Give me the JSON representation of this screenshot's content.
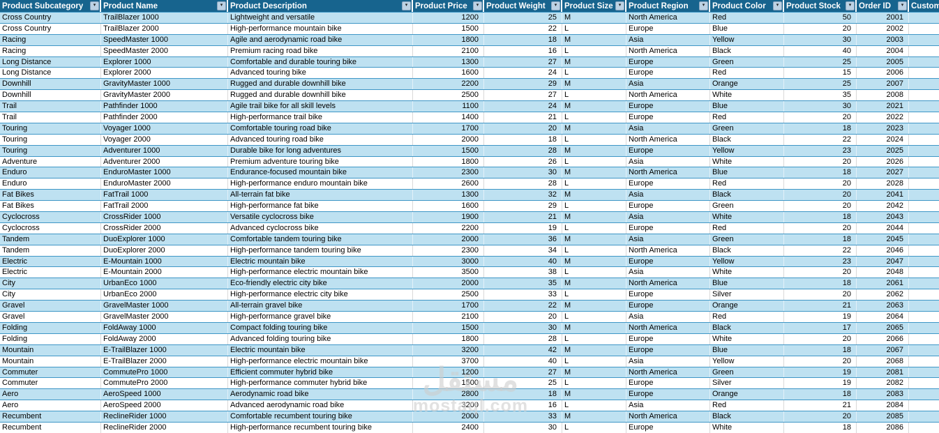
{
  "table": {
    "columns": [
      {
        "label": "Product Subcategory",
        "align": "left",
        "filter": true
      },
      {
        "label": "Product Name",
        "align": "left",
        "filter": true
      },
      {
        "label": "Product Description",
        "align": "left",
        "filter": true
      },
      {
        "label": "Product Price",
        "align": "right",
        "filter": true
      },
      {
        "label": "Product Weight",
        "align": "right",
        "filter": true
      },
      {
        "label": "Product Size",
        "align": "left",
        "filter": true
      },
      {
        "label": "Product Region",
        "align": "left",
        "filter": true
      },
      {
        "label": "Product Color",
        "align": "left",
        "filter": true
      },
      {
        "label": "Product Stock",
        "align": "right",
        "filter": true
      },
      {
        "label": "Order ID",
        "align": "right",
        "filter": true
      },
      {
        "label": "Custom",
        "align": "left",
        "filter": false
      }
    ],
    "rows": [
      [
        "Cross Country",
        "TrailBlazer 1000",
        "Lightweight and versatile",
        "1200",
        "25",
        "M",
        "North America",
        "Red",
        "50",
        "2001",
        ""
      ],
      [
        "Cross Country",
        "TrailBlazer 2000",
        "High-performance mountain bike",
        "1500",
        "22",
        "L",
        "Europe",
        "Blue",
        "20",
        "2002",
        ""
      ],
      [
        "Racing",
        "SpeedMaster 1000",
        "Agile and aerodynamic road bike",
        "1800",
        "18",
        "M",
        "Asia",
        "Yellow",
        "30",
        "2003",
        ""
      ],
      [
        "Racing",
        "SpeedMaster 2000",
        "Premium racing road bike",
        "2100",
        "16",
        "L",
        "North America",
        "Black",
        "40",
        "2004",
        ""
      ],
      [
        "Long Distance",
        "Explorer 1000",
        "Comfortable and durable touring bike",
        "1300",
        "27",
        "M",
        "Europe",
        "Green",
        "25",
        "2005",
        ""
      ],
      [
        "Long Distance",
        "Explorer 2000",
        "Advanced touring bike",
        "1600",
        "24",
        "L",
        "Europe",
        "Red",
        "15",
        "2006",
        ""
      ],
      [
        "Downhill",
        "GravityMaster 1000",
        "Rugged and durable downhill bike",
        "2200",
        "29",
        "M",
        "Asia",
        "Orange",
        "25",
        "2007",
        ""
      ],
      [
        "Downhill",
        "GravityMaster 2000",
        "Rugged and durable downhill bike",
        "2500",
        "27",
        "L",
        "North America",
        "White",
        "35",
        "2008",
        ""
      ],
      [
        "Trail",
        "Pathfinder 1000",
        "Agile trail bike for all skill levels",
        "1100",
        "24",
        "M",
        "Europe",
        "Blue",
        "30",
        "2021",
        ""
      ],
      [
        "Trail",
        "Pathfinder 2000",
        "High-performance trail bike",
        "1400",
        "21",
        "L",
        "Europe",
        "Red",
        "20",
        "2022",
        ""
      ],
      [
        "Touring",
        "Voyager 1000",
        "Comfortable touring road bike",
        "1700",
        "20",
        "M",
        "Asia",
        "Green",
        "18",
        "2023",
        ""
      ],
      [
        "Touring",
        "Voyager 2000",
        "Advanced touring road bike",
        "2000",
        "18",
        "L",
        "North America",
        "Black",
        "22",
        "2024",
        ""
      ],
      [
        "Touring",
        "Adventurer 1000",
        "Durable bike for long adventures",
        "1500",
        "28",
        "M",
        "Europe",
        "Yellow",
        "23",
        "2025",
        ""
      ],
      [
        "Adventure",
        "Adventurer 2000",
        "Premium adventure touring bike",
        "1800",
        "26",
        "L",
        "Asia",
        "White",
        "20",
        "2026",
        ""
      ],
      [
        "Enduro",
        "EnduroMaster 1000",
        "Endurance-focused mountain bike",
        "2300",
        "30",
        "M",
        "North America",
        "Blue",
        "18",
        "2027",
        ""
      ],
      [
        "Enduro",
        "EnduroMaster 2000",
        "High-performance enduro mountain bike",
        "2600",
        "28",
        "L",
        "Europe",
        "Red",
        "20",
        "2028",
        ""
      ],
      [
        "Fat Bikes",
        "FatTrail 1000",
        "All-terrain fat bike",
        "1300",
        "32",
        "M",
        "Asia",
        "Black",
        "20",
        "2041",
        ""
      ],
      [
        "Fat Bikes",
        "FatTrail 2000",
        "High-performance fat bike",
        "1600",
        "29",
        "L",
        "Europe",
        "Green",
        "20",
        "2042",
        ""
      ],
      [
        "Cyclocross",
        "CrossRider 1000",
        "Versatile cyclocross bike",
        "1900",
        "21",
        "M",
        "Asia",
        "White",
        "18",
        "2043",
        ""
      ],
      [
        "Cyclocross",
        "CrossRider 2000",
        "Advanced cyclocross bike",
        "2200",
        "19",
        "L",
        "Europe",
        "Red",
        "20",
        "2044",
        ""
      ],
      [
        "Tandem",
        "DuoExplorer 1000",
        "Comfortable tandem touring bike",
        "2000",
        "36",
        "M",
        "Asia",
        "Green",
        "18",
        "2045",
        ""
      ],
      [
        "Tandem",
        "DuoExplorer 2000",
        "High-performance tandem touring bike",
        "2300",
        "34",
        "L",
        "North America",
        "Black",
        "22",
        "2046",
        ""
      ],
      [
        "Electric",
        "E-Mountain 1000",
        "Electric mountain bike",
        "3000",
        "40",
        "M",
        "Europe",
        "Yellow",
        "23",
        "2047",
        ""
      ],
      [
        "Electric",
        "E-Mountain 2000",
        "High-performance electric mountain bike",
        "3500",
        "38",
        "L",
        "Asia",
        "White",
        "20",
        "2048",
        ""
      ],
      [
        "City",
        "UrbanEco 1000",
        "Eco-friendly electric city bike",
        "2000",
        "35",
        "M",
        "North America",
        "Blue",
        "18",
        "2061",
        ""
      ],
      [
        "City",
        "UrbanEco 2000",
        "High-performance electric city bike",
        "2500",
        "33",
        "L",
        "Europe",
        "Silver",
        "20",
        "2062",
        ""
      ],
      [
        "Gravel",
        "GravelMaster 1000",
        "All-terrain gravel bike",
        "1700",
        "22",
        "M",
        "Europe",
        "Orange",
        "21",
        "2063",
        ""
      ],
      [
        "Gravel",
        "GravelMaster 2000",
        "High-performance gravel bike",
        "2100",
        "20",
        "L",
        "Asia",
        "Red",
        "19",
        "2064",
        ""
      ],
      [
        "Folding",
        "FoldAway 1000",
        "Compact folding touring bike",
        "1500",
        "30",
        "M",
        "North America",
        "Black",
        "17",
        "2065",
        ""
      ],
      [
        "Folding",
        "FoldAway 2000",
        "Advanced folding touring bike",
        "1800",
        "28",
        "L",
        "Europe",
        "White",
        "20",
        "2066",
        ""
      ],
      [
        "Mountain",
        "E-TrailBlazer 1000",
        "Electric mountain bike",
        "3200",
        "42",
        "M",
        "Europe",
        "Blue",
        "18",
        "2067",
        ""
      ],
      [
        "Mountain",
        "E-TrailBlazer 2000",
        "High-performance electric mountain bike",
        "3700",
        "40",
        "L",
        "Asia",
        "Yellow",
        "20",
        "2068",
        ""
      ],
      [
        "Commuter",
        "CommutePro 1000",
        "Efficient commuter hybrid bike",
        "1200",
        "27",
        "M",
        "North America",
        "Green",
        "19",
        "2081",
        ""
      ],
      [
        "Commuter",
        "CommutePro 2000",
        "High-performance commuter hybrid bike",
        "1500",
        "25",
        "L",
        "Europe",
        "Silver",
        "19",
        "2082",
        ""
      ],
      [
        "Aero",
        "AeroSpeed 1000",
        "Aerodynamic road bike",
        "2800",
        "18",
        "M",
        "Europe",
        "Orange",
        "18",
        "2083",
        ""
      ],
      [
        "Aero",
        "AeroSpeed 2000",
        "Advanced aerodynamic road bike",
        "3200",
        "16",
        "L",
        "Asia",
        "Red",
        "21",
        "2084",
        ""
      ],
      [
        "Recumbent",
        "ReclineRider 1000",
        "Comfortable recumbent touring bike",
        "2000",
        "33",
        "M",
        "North America",
        "Black",
        "20",
        "2085",
        ""
      ],
      [
        "Recumbent",
        "ReclineRider 2000",
        "High-performance recumbent touring bike",
        "2400",
        "30",
        "L",
        "Europe",
        "White",
        "18",
        "2086",
        ""
      ]
    ]
  },
  "watermark": {
    "line1": "مستقل",
    "line2": "mostaql.com"
  },
  "colors": {
    "header_bg": "#17648E",
    "row_stripe": "#BEE1F1",
    "row_separator": "#3E96C6",
    "filter_button_bg": "#BCD2E4",
    "header_text": "#FFFFFF",
    "cell_text": "#000000"
  },
  "icons": {
    "filter_dropdown": "▾"
  }
}
